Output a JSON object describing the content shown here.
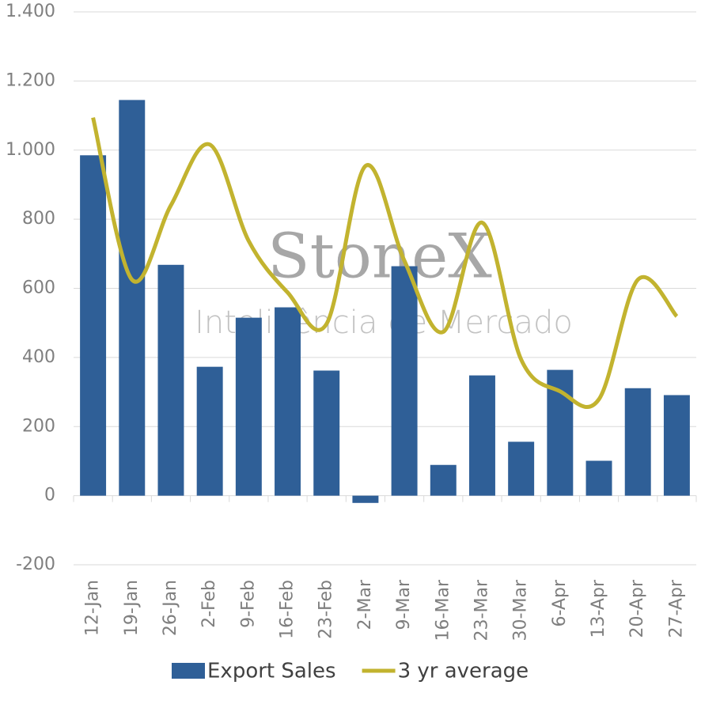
{
  "chart_data": {
    "type": "bar_line",
    "watermark": {
      "brand": "StoneX",
      "tagline": "Inteligência de Mercado"
    },
    "categories": [
      "12-Jan",
      "19-Jan",
      "26-Jan",
      "2-Feb",
      "9-Feb",
      "16-Feb",
      "23-Feb",
      "2-Mar",
      "9-Mar",
      "16-Mar",
      "23-Mar",
      "30-Mar",
      "6-Apr",
      "13-Apr",
      "20-Apr",
      "27-Apr"
    ],
    "series": [
      {
        "name": "Export Sales",
        "type": "bar",
        "color": "#2f5f97",
        "values": [
          985,
          1145,
          668,
          373,
          515,
          545,
          362,
          -21,
          664,
          89,
          348,
          156,
          364,
          101,
          311,
          291
        ]
      },
      {
        "name": "3 yr average",
        "type": "line",
        "smooth": true,
        "color": "#c2b32f",
        "values": [
          1094,
          625,
          840,
          1016,
          737,
          588,
          497,
          954,
          680,
          474,
          790,
          394,
          302,
          279,
          625,
          519
        ]
      }
    ],
    "ylim": [
      -200,
      1400
    ],
    "yticks": [
      -200,
      0,
      200,
      400,
      600,
      800,
      {
        "value": 1000,
        "label": "1.000"
      },
      {
        "value": 1200,
        "label": "1.200"
      },
      {
        "value": 1400,
        "label": "1.400"
      }
    ],
    "grid": true,
    "legend": "bottom"
  }
}
